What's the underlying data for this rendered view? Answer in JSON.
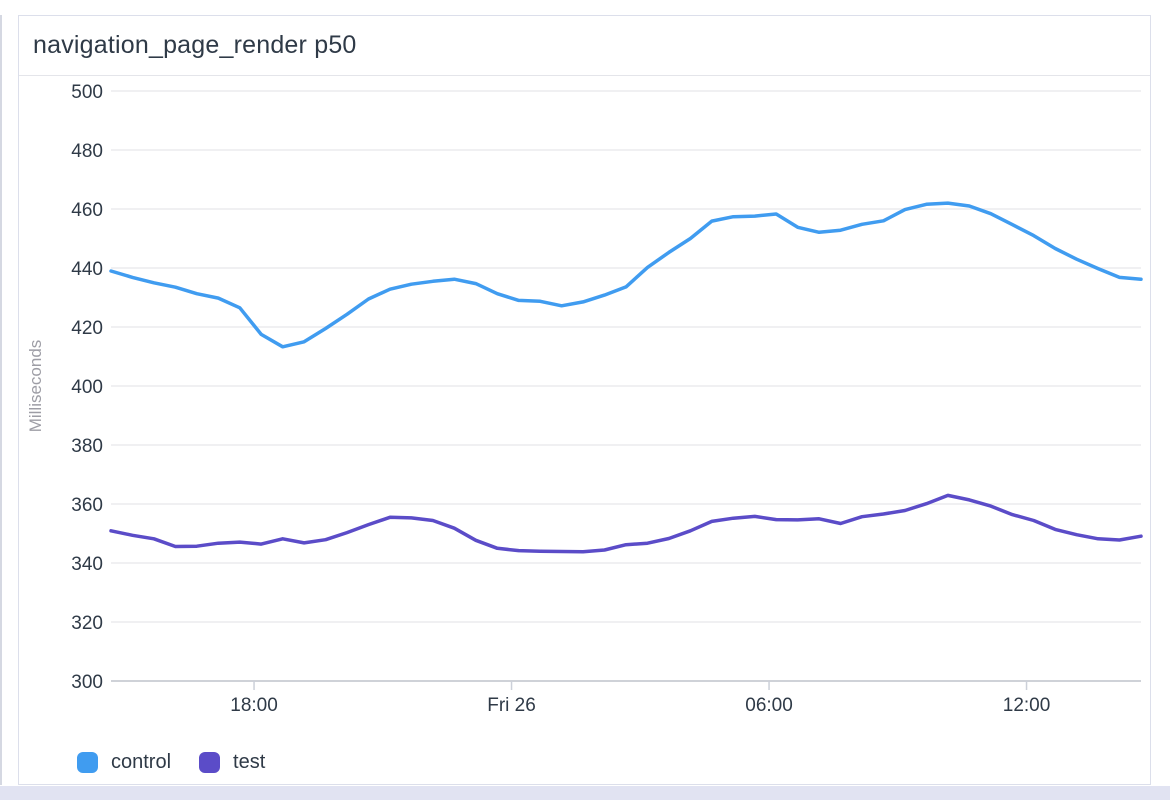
{
  "panel": {
    "title": "navigation_page_render p50"
  },
  "chart_data": {
    "type": "line",
    "title": "navigation_page_render p50",
    "xlabel": "",
    "ylabel": "Milliseconds",
    "ylim": [
      300,
      500
    ],
    "ytick_step": 20,
    "y_tick_labels": [
      "500",
      "480",
      "460",
      "440",
      "420",
      "400",
      "380",
      "360",
      "340",
      "320",
      "300"
    ],
    "grid": "horizontal-only",
    "legend_position": "bottom-left",
    "x_start": "Thu 14:40",
    "x_step_minutes": 30,
    "x_span_hours": 24,
    "x_ticks": [
      {
        "label": "18:00",
        "hours_from_start": 3.333
      },
      {
        "label": "Fri 26",
        "hours_from_start": 9.333
      },
      {
        "label": "06:00",
        "hours_from_start": 15.333
      },
      {
        "label": "12:00",
        "hours_from_start": 21.333
      }
    ],
    "series": [
      {
        "name": "control",
        "color": "#409CF0",
        "values": [
          439.0,
          436.8,
          435.0,
          433.5,
          431.3,
          429.8,
          426.5,
          417.5,
          413.3,
          415.0,
          419.5,
          424.3,
          429.5,
          432.8,
          434.5,
          435.5,
          436.2,
          434.7,
          431.3,
          429.0,
          428.7,
          427.2,
          428.5,
          430.8,
          433.6,
          440.2,
          445.3,
          450.0,
          455.9,
          457.4,
          457.6,
          458.3,
          453.8,
          452.1,
          452.8,
          454.8,
          456.0,
          459.8,
          461.6,
          462.0,
          461.0,
          458.4,
          454.7,
          451.0,
          446.6,
          443.0,
          439.8,
          436.8,
          436.2
        ]
      },
      {
        "name": "test",
        "color": "#5B4CC8",
        "values": [
          350.9,
          349.4,
          348.2,
          345.6,
          345.7,
          346.7,
          347.1,
          346.4,
          348.2,
          346.8,
          347.9,
          350.3,
          353.0,
          355.5,
          355.3,
          354.4,
          351.8,
          347.7,
          345.0,
          344.2,
          344.0,
          343.9,
          343.8,
          344.4,
          346.2,
          346.7,
          348.3,
          350.9,
          354.1,
          355.2,
          355.8,
          354.7,
          354.6,
          355.0,
          353.4,
          355.7,
          356.6,
          357.8,
          360.1,
          362.9,
          361.4,
          359.3,
          356.4,
          354.4,
          351.4,
          349.6,
          348.2,
          347.8,
          349.1
        ]
      }
    ],
    "colors": {
      "grid_line": "#ebebee",
      "axis_baseline": "#bfc3cc",
      "tick_mark": "#ccd0d9",
      "tick_text": "#2f3a47",
      "axis_title_text": "#9d9da5"
    }
  },
  "legend": {
    "items": [
      {
        "label": "control",
        "color": "#409CF0"
      },
      {
        "label": "test",
        "color": "#5B4CC8"
      }
    ]
  }
}
